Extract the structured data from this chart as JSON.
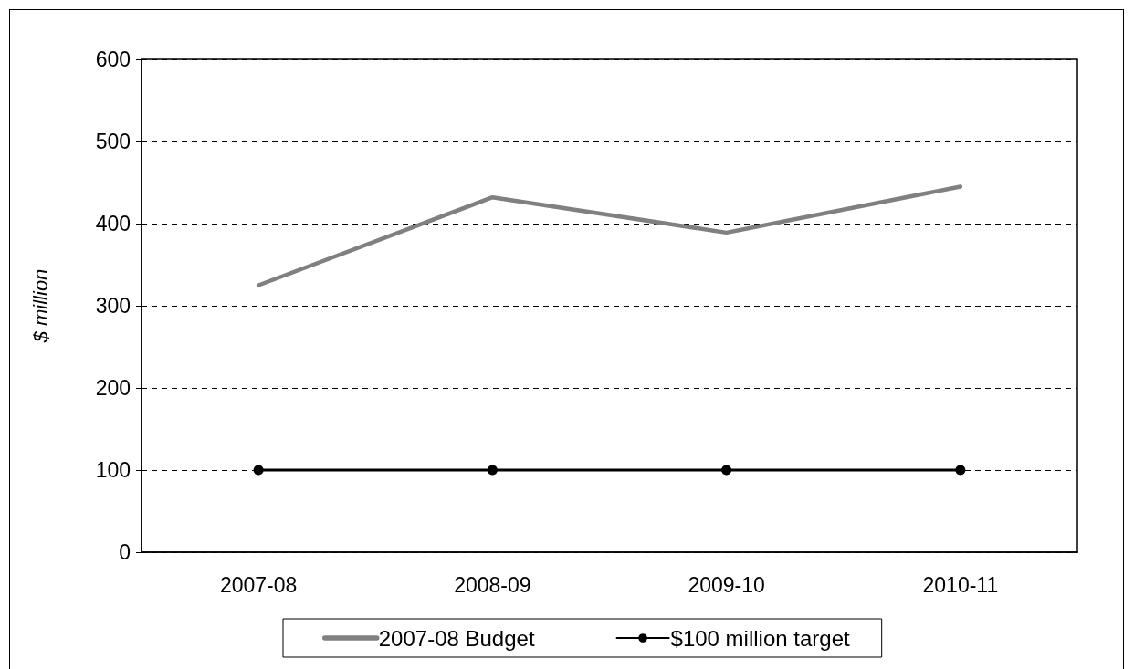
{
  "chart_data": {
    "type": "line",
    "ylabel": "$ million",
    "categories": [
      "2007-08",
      "2008-09",
      "2009-10",
      "2010-11"
    ],
    "series": [
      {
        "name": "2007-08 Budget",
        "color": "#808080",
        "values": [
          325,
          432,
          389,
          445
        ],
        "marker": "none"
      },
      {
        "name": "$100 million target",
        "color": "#000000",
        "values": [
          100,
          100,
          100,
          100
        ],
        "marker": "circle"
      }
    ],
    "ylim": [
      0,
      600
    ],
    "yticks": [
      0,
      100,
      200,
      300,
      400,
      500,
      600
    ],
    "grid": "y",
    "legend": "bottom"
  }
}
